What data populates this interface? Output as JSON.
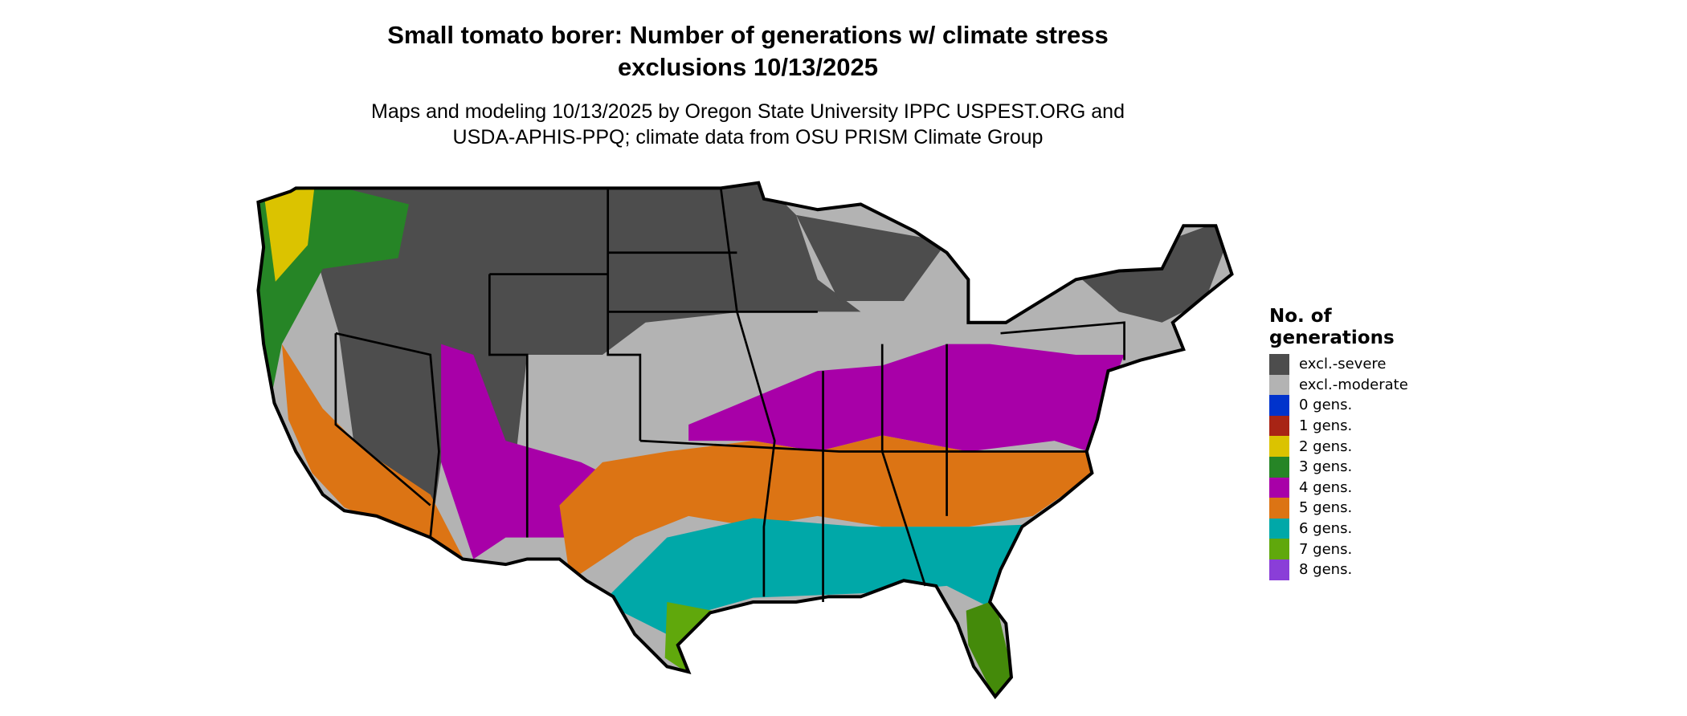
{
  "title": "Small tomato borer: Number of generations w/ climate stress exclusions 10/13/2025",
  "title_lines": [
    "Small tomato borer: Number of generations w/ climate stress",
    "exclusions 10/13/2025"
  ],
  "subtitle_lines": [
    "Maps and modeling 10/13/2025 by Oregon State University IPPC USPEST.ORG and",
    "USDA-APHIS-PPQ; climate data from OSU PRISM Climate Group"
  ],
  "map": {
    "region": "Contiguous United States",
    "borders": "state boundaries"
  },
  "legend": {
    "title_lines": [
      "No. of",
      "generations"
    ],
    "items": [
      {
        "label": "excl.-severe",
        "color": "#4d4d4d"
      },
      {
        "label": "excl.-moderate",
        "color": "#b3b3b3"
      },
      {
        "label": "0 gens.",
        "color": "#0033cc"
      },
      {
        "label": "1 gens.",
        "color": "#a82415"
      },
      {
        "label": "2 gens.",
        "color": "#dbc300"
      },
      {
        "label": "3 gens.",
        "color": "#268526"
      },
      {
        "label": "4 gens.",
        "color": "#a800a8"
      },
      {
        "label": "5 gens.",
        "color": "#dc7414"
      },
      {
        "label": "6 gens.",
        "color": "#00a8a8"
      },
      {
        "label": "7 gens.",
        "color": "#60a80c"
      },
      {
        "label": "8 gens.",
        "color": "#8a3ed8"
      }
    ]
  }
}
